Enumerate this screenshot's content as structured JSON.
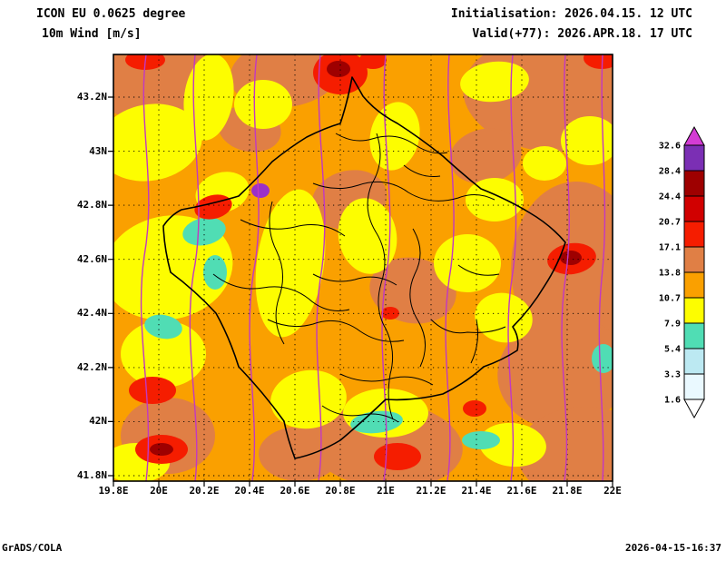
{
  "header": {
    "model_line": "ICON EU 0.0625 degree",
    "variable_line": "10m Wind [m/s]",
    "init_line": "Initialisation: 2026.04.15. 12 UTC",
    "valid_line": "Valid(+77): 2026.APR.18. 17 UTC"
  },
  "axes": {
    "y_labels": [
      "43.2N",
      "43N",
      "42.8N",
      "42.6N",
      "42.4N",
      "42.2N",
      "42N",
      "41.8N"
    ],
    "x_labels": [
      "19.8E",
      "20E",
      "20.2E",
      "20.4E",
      "20.6E",
      "20.8E",
      "21E",
      "21.2E",
      "21.4E",
      "21.6E",
      "21.8E",
      "22E"
    ]
  },
  "colorbar": {
    "levels_top_to_bottom": [
      "32.6",
      "28.4",
      "24.4",
      "20.7",
      "17.1",
      "13.8",
      "10.7",
      "7.9",
      "5.4",
      "3.3",
      "1.6"
    ],
    "colors_top_to_bottom": [
      "#d43cd4",
      "#7b2fb4",
      "#9e0000",
      "#d10000",
      "#f51d00",
      "#e07f45",
      "#faa000",
      "#fdfd00",
      "#50ddb4",
      "#bce9f2",
      "#eaf9ff",
      "#ffffff"
    ]
  },
  "map": {
    "region": "Kosovo",
    "fill_colors": {
      "base_orange": "#faa000",
      "tan_13_8_to_17_1": "#e07f45",
      "yellow_7_9_to_10_7": "#fdfd00",
      "turquoise_5_4_to_7_9": "#50ddb4",
      "red_17_1_plus": "#f51d00",
      "dark_red": "#9e0000",
      "purple_spot": "#9b30c8",
      "isobar_magenta": "#c238c2",
      "border_black": "#000000"
    }
  },
  "footer": {
    "credit": "GrADS/COLA",
    "timestamp": "2026-04-15-16:37"
  }
}
